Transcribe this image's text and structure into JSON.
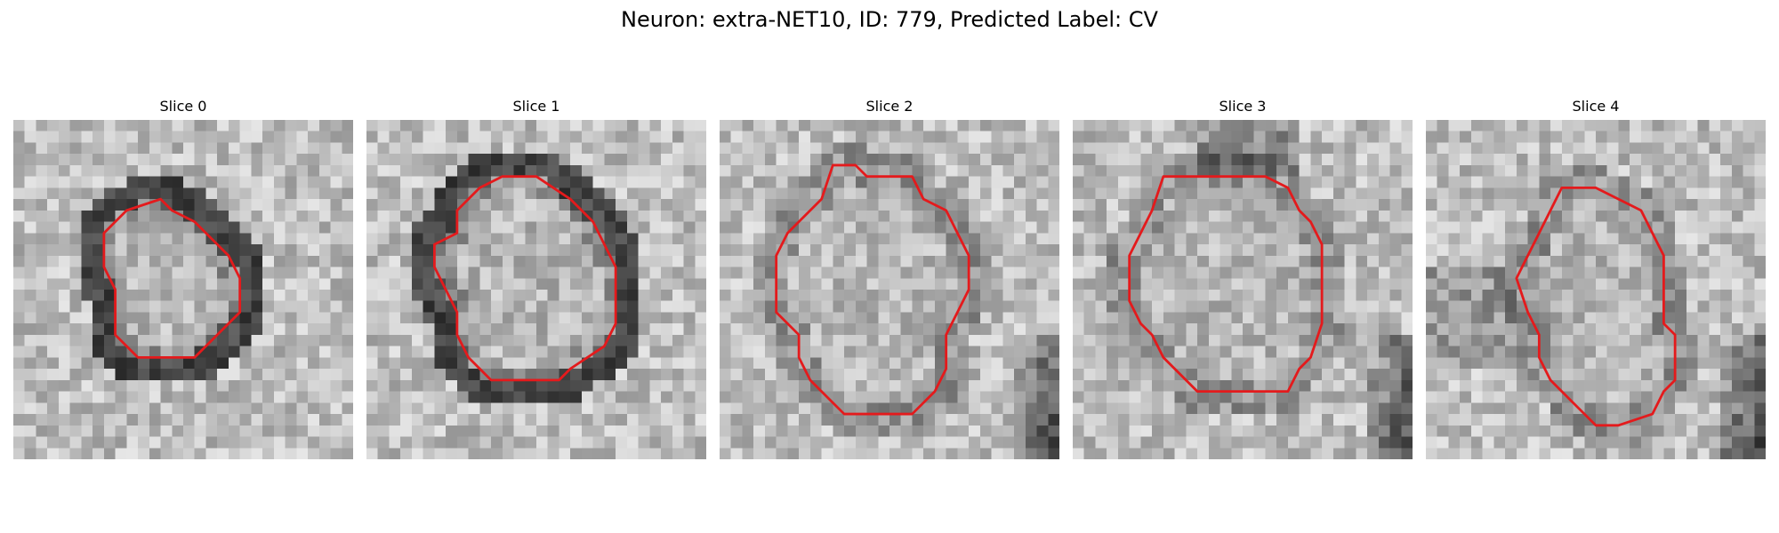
{
  "figure": {
    "title": "Neuron: extra-NET10, ID: 779, Predicted Label: CV",
    "outline_color": "#e41a1c"
  },
  "panels": [
    {
      "title": "Slice 0",
      "outline": [
        [
          10,
          8
        ],
        [
          13,
          7
        ],
        [
          14,
          8
        ],
        [
          16,
          9
        ],
        [
          18,
          11
        ],
        [
          19,
          12
        ],
        [
          20,
          14
        ],
        [
          20,
          17
        ],
        [
          18,
          19
        ],
        [
          16,
          21
        ],
        [
          14,
          21
        ],
        [
          11,
          21
        ],
        [
          9,
          19
        ],
        [
          9,
          17
        ],
        [
          9,
          15
        ],
        [
          8,
          13
        ],
        [
          8,
          10
        ]
      ],
      "dark_ring": true
    },
    {
      "title": "Slice 1",
      "outline": [
        [
          10,
          6
        ],
        [
          12,
          5
        ],
        [
          15,
          5
        ],
        [
          18,
          7
        ],
        [
          20,
          9
        ],
        [
          21,
          11
        ],
        [
          22,
          13
        ],
        [
          22,
          18
        ],
        [
          21,
          20
        ],
        [
          18,
          22
        ],
        [
          17,
          23
        ],
        [
          11,
          23
        ],
        [
          9,
          21
        ],
        [
          8,
          19
        ],
        [
          8,
          17
        ],
        [
          7,
          15
        ],
        [
          6,
          13
        ],
        [
          6,
          11
        ],
        [
          8,
          10
        ],
        [
          8,
          8
        ]
      ],
      "dark_ring": true
    },
    {
      "title": "Slice 2",
      "outline": [
        [
          10,
          4
        ],
        [
          12,
          4
        ],
        [
          13,
          5
        ],
        [
          17,
          5
        ],
        [
          18,
          7
        ],
        [
          20,
          8
        ],
        [
          21,
          10
        ],
        [
          22,
          12
        ],
        [
          22,
          15
        ],
        [
          21,
          17
        ],
        [
          20,
          19
        ],
        [
          20,
          22
        ],
        [
          19,
          24
        ],
        [
          17,
          26
        ],
        [
          11,
          26
        ],
        [
          10,
          25
        ],
        [
          8,
          23
        ],
        [
          7,
          21
        ],
        [
          7,
          19
        ],
        [
          5,
          17
        ],
        [
          5,
          12
        ],
        [
          6,
          10
        ],
        [
          8,
          8
        ],
        [
          9,
          7
        ]
      ],
      "dark_ring": false
    },
    {
      "title": "Slice 3",
      "outline": [
        [
          8,
          5
        ],
        [
          10,
          5
        ],
        [
          13,
          5
        ],
        [
          17,
          5
        ],
        [
          19,
          6
        ],
        [
          20,
          8
        ],
        [
          21,
          9
        ],
        [
          22,
          11
        ],
        [
          22,
          18
        ],
        [
          21,
          21
        ],
        [
          20,
          22
        ],
        [
          19,
          24
        ],
        [
          13,
          24
        ],
        [
          11,
          24
        ],
        [
          9,
          22
        ],
        [
          8,
          21
        ],
        [
          7,
          19
        ],
        [
          6,
          18
        ],
        [
          5,
          16
        ],
        [
          5,
          12
        ],
        [
          6,
          10
        ],
        [
          7,
          8
        ]
      ],
      "dark_ring": false
    },
    {
      "title": "Slice 4",
      "outline": [
        [
          12,
          6
        ],
        [
          15,
          6
        ],
        [
          17,
          7
        ],
        [
          19,
          8
        ],
        [
          20,
          10
        ],
        [
          21,
          12
        ],
        [
          21,
          18
        ],
        [
          22,
          19
        ],
        [
          22,
          23
        ],
        [
          21,
          24
        ],
        [
          20,
          26
        ],
        [
          17,
          27
        ],
        [
          15,
          27
        ],
        [
          13,
          25
        ],
        [
          11,
          23
        ],
        [
          10,
          21
        ],
        [
          10,
          19
        ],
        [
          9,
          17
        ],
        [
          8,
          14
        ],
        [
          9,
          12
        ],
        [
          10,
          10
        ],
        [
          11,
          8
        ]
      ],
      "dark_ring": false
    }
  ]
}
